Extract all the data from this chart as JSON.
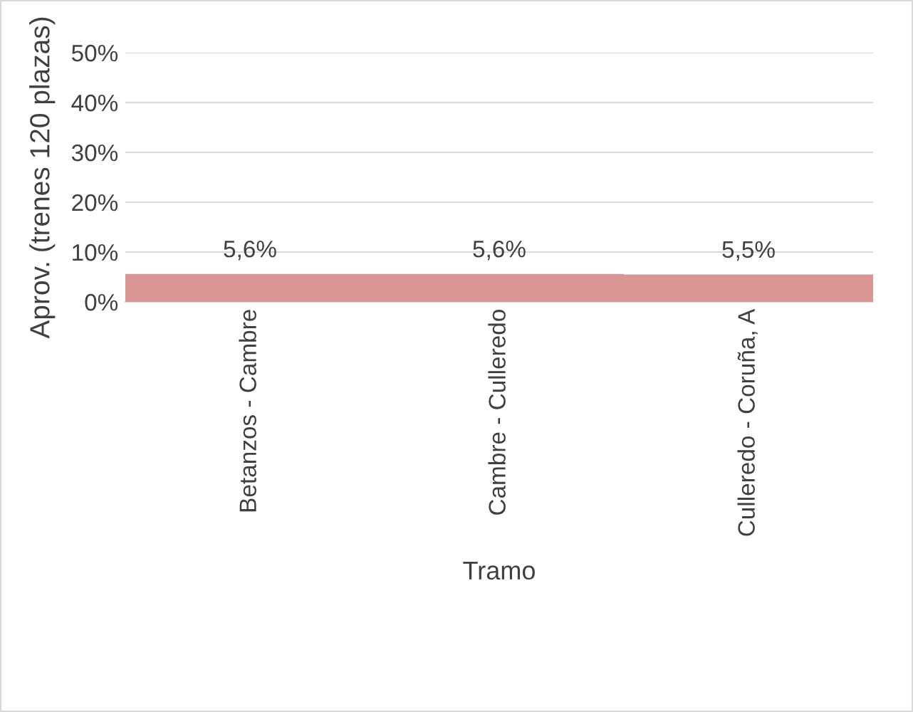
{
  "chart_data": {
    "type": "bar",
    "xlabel": "Tramo",
    "ylabel": "Aprov. (trenes 120 plazas)",
    "categories": [
      "Betanzos - Cambre",
      "Cambre - Culleredo",
      "Culleredo - Coruña, A"
    ],
    "values": [
      5.6,
      5.6,
      5.5
    ],
    "color": "#d99694",
    "value_labels": [
      "5,6%",
      "5,6%",
      "5,5%"
    ],
    "ylim": [
      0,
      50
    ],
    "yticks": [
      {
        "value": 0,
        "label": "0%"
      },
      {
        "value": 10,
        "label": "10%"
      },
      {
        "value": 20,
        "label": "20%"
      },
      {
        "value": 30,
        "label": "30%"
      },
      {
        "value": 40,
        "label": "40%"
      },
      {
        "value": 50,
        "label": "50%"
      }
    ],
    "grid": "y",
    "legend": false
  }
}
